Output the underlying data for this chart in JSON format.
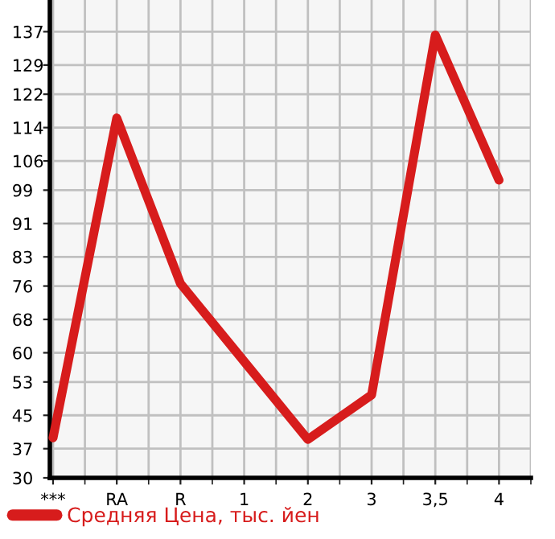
{
  "chart_data": {
    "type": "line",
    "categories": [
      "***",
      "RA",
      "R",
      "1",
      "2",
      "3",
      "3,5",
      "4"
    ],
    "series": [
      {
        "name": "Средняя Цена, тыс. йен",
        "color": "#d71c1c",
        "values": [
          39.6,
          116.3,
          76.6,
          57.9,
          39.2,
          49.9,
          136.2,
          101.4
        ]
      }
    ],
    "ylim": [
      30,
      144.6
    ],
    "yticks": [
      30,
      37,
      45,
      53,
      60,
      68,
      76,
      83,
      91,
      99,
      106,
      114,
      122,
      129,
      137
    ],
    "grid": true,
    "legend": "bottom left",
    "marker": "none",
    "line_style": "solid"
  }
}
